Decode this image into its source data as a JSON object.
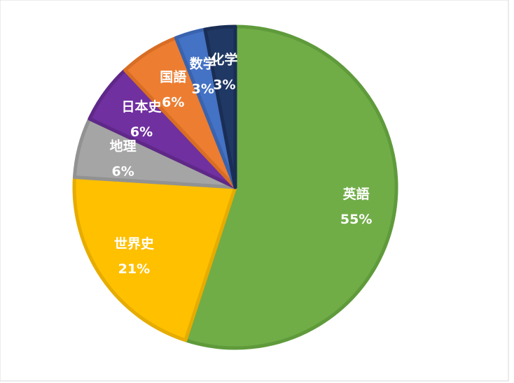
{
  "chart_data": {
    "type": "pie",
    "categories": [
      "英語",
      "世界史",
      "地理",
      "日本史",
      "国語",
      "数学",
      "化学"
    ],
    "values": [
      55,
      21,
      6,
      6,
      6,
      3,
      3
    ],
    "value_labels": [
      "55%",
      "21%",
      "6%",
      "6%",
      "6%",
      "3%",
      "3%"
    ],
    "colors": [
      "#70ad47",
      "#ffc000",
      "#a5a5a5",
      "#7030a0",
      "#ed7d31",
      "#4472c4",
      "#203864"
    ],
    "border_colors": [
      "#5f9a3b",
      "#e6ac00",
      "#929292",
      "#5f2888",
      "#d86d24",
      "#3a63ae",
      "#1a2e55"
    ]
  }
}
